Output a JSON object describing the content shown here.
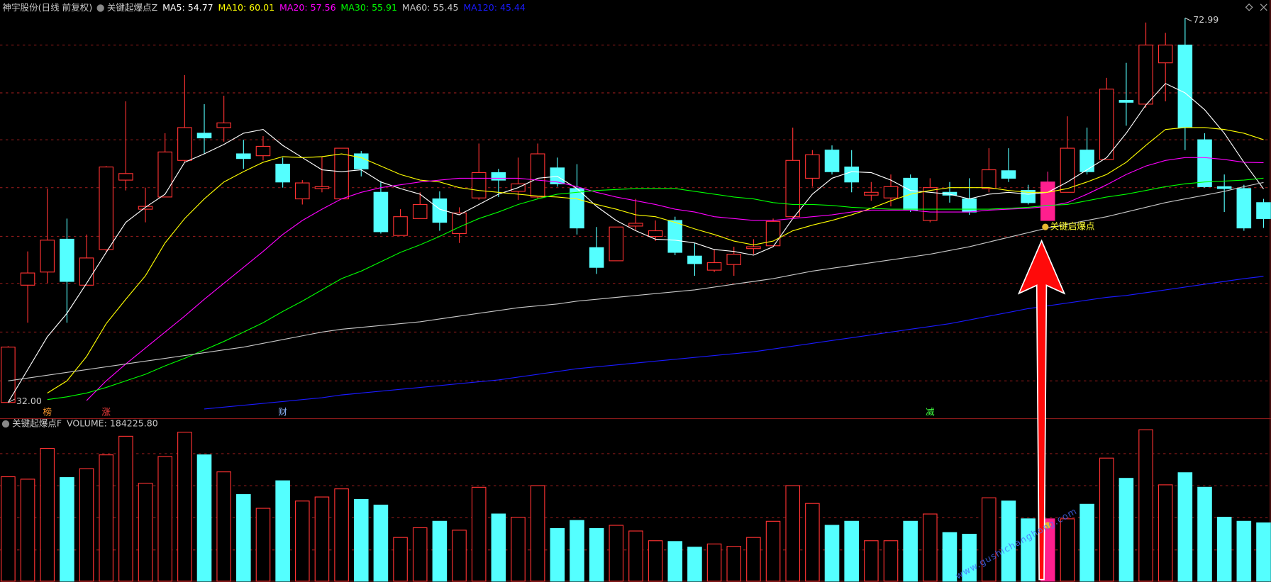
{
  "chart_data": [
    {
      "type": "candlestick",
      "title": "神宇股份(日线 前复权)",
      "subtitle": "关键起爆点Z",
      "title_color": "#c8c8c8",
      "up_color": "#ff3232",
      "down_color": "#54ffff",
      "ylim": [
        30.4,
        74.9
      ],
      "yticks": [
        34.3,
        39.5,
        44.7,
        49.7,
        54.9,
        60.0,
        65.0,
        70.1
      ],
      "grid": true,
      "grid_color": "#8b1a1a",
      "open": [
        32.0,
        44.5,
        45.9,
        49.4,
        44.5,
        48.3,
        55.7,
        52.6,
        53.9,
        57.8,
        60.7,
        61.3,
        58.5,
        58.3,
        57.4,
        53.7,
        54.8,
        53.7,
        58.5,
        54.4,
        49.8,
        51.6,
        53.7,
        50.0,
        53.8,
        56.5,
        54.5,
        53.9,
        57.0,
        54.8,
        48.5,
        47.1,
        50.8,
        49.7,
        51.4,
        47.6,
        46.1,
        46.7,
        48.4,
        48.7,
        51.8,
        55.9,
        58.9,
        57.1,
        54.1,
        53.8,
        55.9,
        51.4,
        54.4,
        53.7,
        54.8,
        56.7,
        54.6,
        51.4,
        54.4,
        58.9,
        57.9,
        64.2,
        63.8,
        68.2,
        70.1,
        60.0,
        55.0,
        54.8,
        53.3
      ],
      "close": [
        37.9,
        45.8,
        49.3,
        44.9,
        47.4,
        57.1,
        56.4,
        52.9,
        58.7,
        61.3,
        60.2,
        61.8,
        58.0,
        59.3,
        55.5,
        55.4,
        55.0,
        59.1,
        56.9,
        50.2,
        51.8,
        53.1,
        51.2,
        52.2,
        56.5,
        55.7,
        55.3,
        58.5,
        55.3,
        50.6,
        46.4,
        50.7,
        51.1,
        50.3,
        48.0,
        46.8,
        46.9,
        47.8,
        48.6,
        51.3,
        57.8,
        58.4,
        56.6,
        55.5,
        54.4,
        55.0,
        52.5,
        54.9,
        54.1,
        52.3,
        56.8,
        55.9,
        53.3,
        55.5,
        59.1,
        56.6,
        65.4,
        64.0,
        70.1,
        70.1,
        61.3,
        55.0,
        54.8,
        50.6,
        51.6
      ],
      "high": [
        38.0,
        48.1,
        54.8,
        51.6,
        49.9,
        57.2,
        64.1,
        54.9,
        60.7,
        66.9,
        63.8,
        64.7,
        60.0,
        60.4,
        58.1,
        55.7,
        58.2,
        59.1,
        58.8,
        55.6,
        52.6,
        54.4,
        54.5,
        52.8,
        59.6,
        56.9,
        58.1,
        59.6,
        58.1,
        57.4,
        50.7,
        50.7,
        53.7,
        51.4,
        51.8,
        49.0,
        48.3,
        48.6,
        49.4,
        51.6,
        61.3,
        58.9,
        59.4,
        58.9,
        55.5,
        56.3,
        56.3,
        55.9,
        55.5,
        55.9,
        59.1,
        59.1,
        55.2,
        56.6,
        62.5,
        61.3,
        66.6,
        68.2,
        72.5,
        71.4,
        72.99,
        60.7,
        56.3,
        55.2,
        53.7
      ],
      "low": [
        32.0,
        40.5,
        44.7,
        40.5,
        44.5,
        48.0,
        54.6,
        51.2,
        53.9,
        57.6,
        58.5,
        59.8,
        56.9,
        57.8,
        54.9,
        53.1,
        54.4,
        53.7,
        56.1,
        50.0,
        49.8,
        51.6,
        50.3,
        49.0,
        53.6,
        53.9,
        53.6,
        53.7,
        55.0,
        49.9,
        45.7,
        47.1,
        50.3,
        49.2,
        47.7,
        45.5,
        45.9,
        45.5,
        47.8,
        48.6,
        51.6,
        55.0,
        56.3,
        54.4,
        53.5,
        52.9,
        52.3,
        51.2,
        53.3,
        52.0,
        54.4,
        55.5,
        53.1,
        51.4,
        54.4,
        56.3,
        57.9,
        61.5,
        63.4,
        64.1,
        58.9,
        54.9,
        52.3,
        50.3,
        50.6
      ],
      "low_label": "32.00",
      "series": [
        {
          "label": "MA5: 54.77",
          "color": "#ffffff",
          "values": [
            32.0,
            35.5,
            39.0,
            41.5,
            44.7,
            48.0,
            51.2,
            52.8,
            54.2,
            57.6,
            58.5,
            59.5,
            60.7,
            61.1,
            59.4,
            58.1,
            56.8,
            56.6,
            56.8,
            55.5,
            54.8,
            54.2,
            52.6,
            52.0,
            53.1,
            54.2,
            54.9,
            55.9,
            56.1,
            54.8,
            52.9,
            51.4,
            50.3,
            49.4,
            49.3,
            49.0,
            48.3,
            48.1,
            47.7,
            48.6,
            51.6,
            54.2,
            55.9,
            56.6,
            56.5,
            55.7,
            54.6,
            54.4,
            54.2,
            53.7,
            54.2,
            54.4,
            54.2,
            54.4,
            55.5,
            56.8,
            58.1,
            60.7,
            63.7,
            66.0,
            65.0,
            63.2,
            60.7,
            57.6,
            54.77
          ]
        },
        {
          "label": "MA10: 60.01",
          "color": "#ffff00",
          "values": [
            null,
            null,
            33.0,
            34.3,
            36.9,
            40.4,
            43.0,
            45.5,
            49.0,
            51.6,
            53.7,
            55.5,
            56.6,
            57.6,
            58.2,
            58.1,
            58.2,
            58.5,
            58.1,
            57.2,
            56.3,
            55.7,
            55.5,
            54.9,
            54.6,
            54.4,
            54.2,
            54.0,
            53.9,
            53.7,
            53.1,
            52.6,
            52.0,
            51.8,
            51.2,
            50.5,
            49.9,
            49.2,
            48.8,
            49.2,
            50.3,
            50.9,
            51.4,
            52.0,
            52.7,
            53.5,
            54.2,
            54.6,
            54.9,
            54.9,
            54.9,
            54.6,
            54.4,
            54.4,
            54.8,
            55.5,
            56.3,
            57.6,
            59.4,
            61.1,
            61.3,
            61.3,
            61.1,
            60.7,
            60.01
          ]
        },
        {
          "label": "MA20: 57.56",
          "color": "#ff00ff",
          "values": [
            null,
            null,
            null,
            null,
            32.2,
            34.3,
            36.1,
            37.8,
            39.5,
            41.2,
            43.0,
            44.7,
            46.4,
            48.1,
            49.9,
            51.4,
            52.6,
            53.7,
            54.4,
            54.9,
            55.2,
            55.5,
            55.7,
            55.9,
            55.9,
            55.9,
            55.9,
            55.7,
            55.5,
            55.0,
            54.4,
            53.9,
            53.5,
            53.1,
            52.6,
            52.3,
            51.8,
            51.6,
            51.4,
            51.4,
            51.6,
            51.8,
            52.0,
            52.3,
            52.5,
            52.5,
            52.5,
            52.3,
            52.3,
            52.3,
            52.5,
            52.6,
            52.7,
            52.9,
            53.3,
            54.2,
            55.2,
            56.3,
            57.2,
            57.8,
            58.1,
            58.1,
            57.9,
            57.6,
            57.56
          ]
        },
        {
          "label": "MA30: 55.91",
          "color": "#00ff00",
          "values": [
            null,
            null,
            32.3,
            32.6,
            33.0,
            33.6,
            34.3,
            35.0,
            35.9,
            36.7,
            37.6,
            38.5,
            39.5,
            40.5,
            41.7,
            42.8,
            44.0,
            45.2,
            46.0,
            47.0,
            48.0,
            48.8,
            49.7,
            50.7,
            51.6,
            52.3,
            53.1,
            53.7,
            54.2,
            54.4,
            54.6,
            54.7,
            54.8,
            54.8,
            54.8,
            54.5,
            54.2,
            53.9,
            53.7,
            53.3,
            53.1,
            53.1,
            53.0,
            52.8,
            52.7,
            52.6,
            52.6,
            52.6,
            52.6,
            52.6,
            52.6,
            52.7,
            52.8,
            53.0,
            53.1,
            53.5,
            53.9,
            54.2,
            54.6,
            55.0,
            55.3,
            55.5,
            55.6,
            55.7,
            55.91
          ]
        },
        {
          "label": "MA60: 55.45",
          "color": "#c8c8c8",
          "values": [
            34.3,
            34.6,
            34.9,
            35.2,
            35.5,
            35.8,
            36.1,
            36.4,
            36.7,
            37.0,
            37.3,
            37.6,
            37.9,
            38.3,
            38.7,
            39.1,
            39.5,
            39.8,
            40.0,
            40.2,
            40.4,
            40.6,
            40.9,
            41.2,
            41.5,
            41.8,
            42.1,
            42.3,
            42.5,
            42.8,
            43.0,
            43.2,
            43.4,
            43.6,
            43.8,
            44.0,
            44.3,
            44.6,
            44.9,
            45.2,
            45.6,
            46.0,
            46.3,
            46.6,
            46.9,
            47.2,
            47.5,
            47.8,
            48.2,
            48.6,
            49.1,
            49.6,
            50.1,
            50.6,
            51.0,
            51.4,
            51.8,
            52.3,
            52.8,
            53.3,
            53.7,
            54.1,
            54.5,
            55.0,
            55.45
          ]
        },
        {
          "label": "MA120: 45.44",
          "color": "#1a1aff",
          "values": [
            null,
            null,
            null,
            null,
            null,
            null,
            null,
            null,
            null,
            null,
            31.3,
            31.5,
            31.7,
            31.9,
            32.1,
            32.3,
            32.5,
            32.8,
            33.0,
            33.2,
            33.4,
            33.6,
            33.8,
            34.0,
            34.2,
            34.4,
            34.7,
            35.0,
            35.3,
            35.6,
            35.8,
            36.0,
            36.2,
            36.4,
            36.6,
            36.8,
            37.0,
            37.2,
            37.4,
            37.7,
            38.0,
            38.3,
            38.6,
            38.9,
            39.2,
            39.5,
            39.8,
            40.1,
            40.4,
            40.8,
            41.2,
            41.6,
            42.0,
            42.3,
            42.6,
            42.9,
            43.2,
            43.4,
            43.7,
            44.0,
            44.3,
            44.6,
            44.9,
            45.2,
            45.44
          ]
        }
      ],
      "signal": {
        "label": "关键启爆点",
        "index": 53,
        "color": "#ff1f8e",
        "label_color": "#ffff33"
      },
      "events": [
        {
          "label": "榜",
          "index": 2,
          "color": "#ff9a2e"
        },
        {
          "label": "涨",
          "index": 5,
          "color": "#ff4040"
        },
        {
          "label": "财",
          "index": 14,
          "color": "#8fb8ff"
        },
        {
          "label": "减",
          "index": 47,
          "color": "#40ff40"
        }
      ]
    },
    {
      "type": "bar",
      "title": "关键起爆点F",
      "label": "VOLUME: 184225.80",
      "ylim": [
        0,
        475000
      ],
      "yticks": [
        100000,
        200000,
        300000,
        400000
      ],
      "grid": true,
      "values": [
        328100,
        320500,
        416500,
        325600,
        353400,
        396300,
        454300,
        307900,
        391200,
        466900,
        396300,
        343300,
        272600,
        229700,
        315500,
        252400,
        265000,
        290300,
        257400,
        239800,
        138800,
        169100,
        189300,
        161500,
        295300,
        212000,
        201900,
        300400,
        166600,
        191800,
        166600,
        176700,
        159000,
        128700,
        126200,
        108500,
        118600,
        111100,
        138800,
        189300,
        300400,
        244800,
        176700,
        189300,
        128700,
        128700,
        189300,
        212000,
        154000,
        148900,
        262500,
        252400,
        196900,
        196900,
        196900,
        242300,
        386200,
        323100,
        474500,
        302900,
        340700,
        295300,
        201900,
        189300,
        184225.8
      ]
    }
  ],
  "watermark": "www.gushichanghong.com"
}
